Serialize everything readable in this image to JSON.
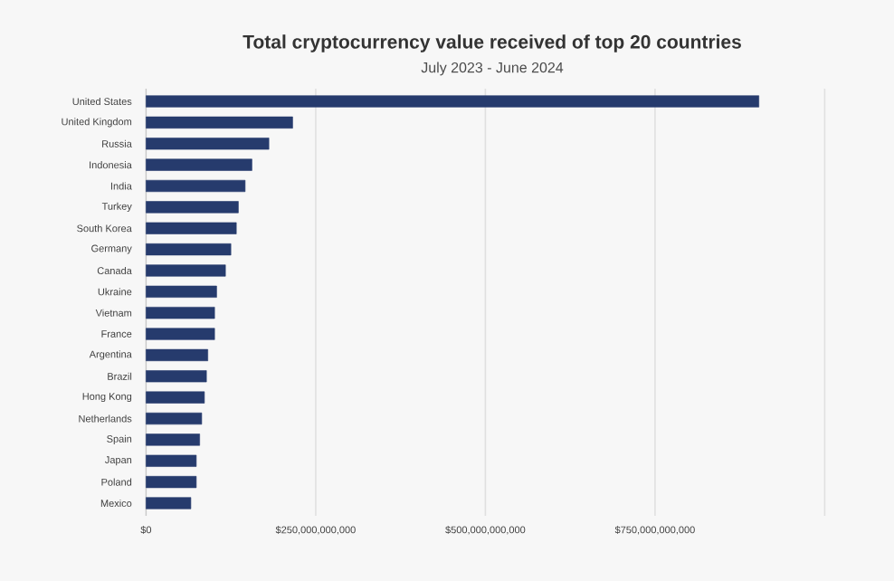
{
  "chart_data": {
    "type": "bar",
    "orientation": "horizontal",
    "title": "Total cryptocurrency value received of top 20 countries",
    "subtitle": "July 2023 - June 2024",
    "categories": [
      "United States",
      "United Kingdom",
      "Russia",
      "Indonesia",
      "India",
      "Turkey",
      "South Korea",
      "Germany",
      "Canada",
      "Ukraine",
      "Vietnam",
      "France",
      "Argentina",
      "Brazil",
      "Hong Kong",
      "Netherlands",
      "Spain",
      "Japan",
      "Poland",
      "Mexico"
    ],
    "values": [
      903000000000,
      216000000000,
      181000000000,
      156000000000,
      146000000000,
      136000000000,
      133000000000,
      125000000000,
      117000000000,
      104000000000,
      101000000000,
      101000000000,
      91000000000,
      89000000000,
      86000000000,
      82000000000,
      79000000000,
      74000000000,
      74000000000,
      66000000000
    ],
    "color": "#263b6d",
    "xlim": [
      0,
      1000000000000
    ],
    "xticks": [
      {
        "value": 0,
        "label": "$0"
      },
      {
        "value": 250000000000,
        "label": "$250,000,000,000"
      },
      {
        "value": 500000000000,
        "label": "$500,000,000,000"
      },
      {
        "value": 750000000000,
        "label": "$750,000,000,000"
      },
      {
        "value": 1000000000000,
        "label": null
      }
    ],
    "grid": "x"
  }
}
